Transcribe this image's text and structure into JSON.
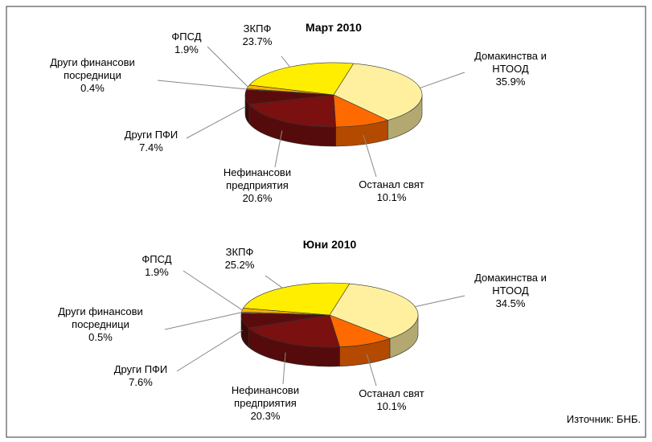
{
  "chart_data": [
    {
      "type": "pie",
      "title": "Март 2010",
      "categories": [
        "Домакинства и НТООД",
        "Останал свят",
        "Нефинансови предприятия",
        "Други ПФИ",
        "Други финансови посредници",
        "ФПСД",
        "ЗКПФ"
      ],
      "values": [
        35.9,
        10.1,
        20.6,
        7.4,
        0.4,
        1.9,
        23.7
      ],
      "value_labels": [
        "35.9%",
        "10.1%",
        "20.6%",
        "7.4%",
        "0.4%",
        "1.9%",
        "23.7%"
      ],
      "colors": [
        "#fff0a0",
        "#ff6a00",
        "#7a1010",
        "#5a0c0c",
        "#ffcc66",
        "#ffb300",
        "#ffee00"
      ]
    },
    {
      "type": "pie",
      "title": "Юни 2010",
      "categories": [
        "Домакинства и НТООД",
        "Останал свят",
        "Нефинансови предприятия",
        "Други ПФИ",
        "Други финансови посредници",
        "ФПСД",
        "ЗКПФ"
      ],
      "values": [
        34.5,
        10.1,
        20.3,
        7.6,
        0.5,
        1.9,
        25.2
      ],
      "value_labels": [
        "34.5%",
        "10.1%",
        "20.3%",
        "7.6%",
        "0.5%",
        "1.9%",
        "25.2%"
      ],
      "colors": [
        "#fff0a0",
        "#ff6a00",
        "#7a1010",
        "#5a0c0c",
        "#ffcc66",
        "#ffb300",
        "#ffee00"
      ]
    }
  ],
  "source": "Източник: БНБ."
}
